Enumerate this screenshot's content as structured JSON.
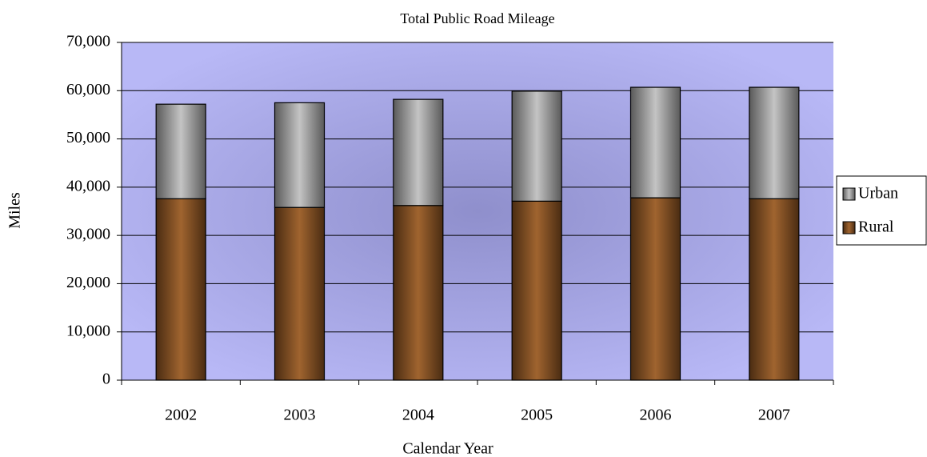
{
  "chart_data": {
    "type": "stacked_bar",
    "title": "Total Public Road Mileage",
    "x_label": "Calendar Year",
    "y_label": "Miles",
    "categories": [
      "2002",
      "2003",
      "2004",
      "2005",
      "2006",
      "2007"
    ],
    "series": [
      {
        "name": "Rural",
        "color": "#9a6030",
        "values": [
          37600,
          35800,
          36200,
          37100,
          37800,
          37600
        ]
      },
      {
        "name": "Urban",
        "color": "#b8b8b8",
        "values": [
          19600,
          21700,
          22000,
          22800,
          22900,
          23100
        ]
      }
    ],
    "ylim": [
      0,
      70000
    ],
    "yticks": [
      0,
      {
        "value": 10000,
        "label": "10,000"
      },
      {
        "value": 20000,
        "label": "20,000"
      },
      {
        "value": 30000,
        "label": "30,000"
      },
      {
        "value": 40000,
        "label": "40,000"
      },
      {
        "value": 50000,
        "label": "50,000"
      },
      {
        "value": 60000,
        "label": "60,000"
      },
      {
        "value": 70000,
        "label": "70,000"
      }
    ],
    "grid": true,
    "legend": "right"
  }
}
